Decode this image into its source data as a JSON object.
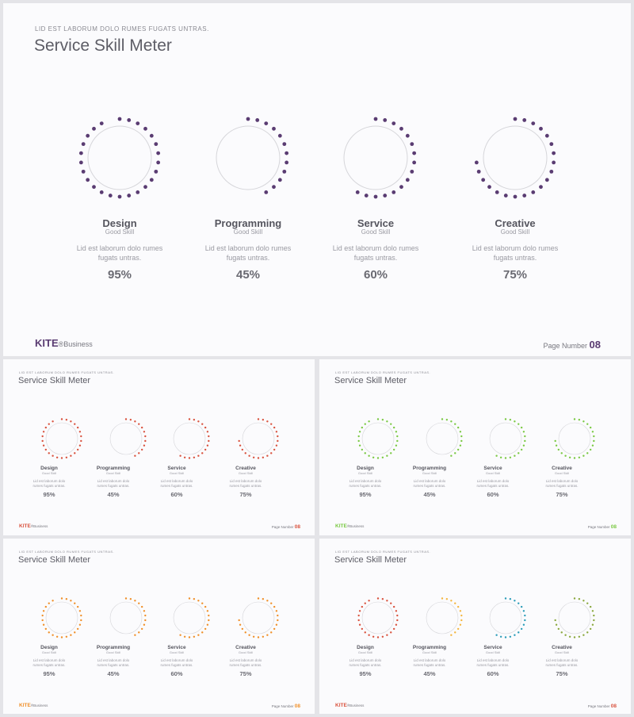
{
  "slide": {
    "supertitle": "LID EST LABORUM  DOLO  RUMES  FUGATS  UNTRAS.",
    "title": "Service Skill Meter",
    "brand_name": "KITE",
    "brand_suffix": "®Business",
    "page_label": "Page  Number",
    "page_number": "08"
  },
  "skills": [
    {
      "name": "Design",
      "sub": "Good Skill",
      "desc": "Lid est laborum dolo rumes fugats untras.",
      "percent_label": "95%",
      "value": 95
    },
    {
      "name": "Programming",
      "sub": "Good Skill",
      "desc": "Lid est laborum dolo rumes fugats untras.",
      "percent_label": "45%",
      "value": 45
    },
    {
      "name": "Service",
      "sub": "Good Skill",
      "desc": "Lid est laborum dolo rumes fugats untras.",
      "percent_label": "60%",
      "value": 60
    },
    {
      "name": "Creative",
      "sub": "Good Skill",
      "desc": "Lid est laborum dolo rumes fugats untras.",
      "percent_label": "75%",
      "value": 75
    }
  ],
  "variants": [
    {
      "id": "main",
      "accent": "#5a3c72",
      "gauge_colors": [
        "#5a3c72",
        "#5a3c72",
        "#5a3c72",
        "#5a3c72"
      ]
    },
    {
      "id": "red",
      "accent": "#d9533f",
      "gauge_colors": [
        "#d9533f",
        "#d9533f",
        "#d9533f",
        "#d9533f"
      ]
    },
    {
      "id": "green",
      "accent": "#7ac943",
      "gauge_colors": [
        "#7ac943",
        "#7ac943",
        "#7ac943",
        "#7ac943"
      ]
    },
    {
      "id": "orange",
      "accent": "#f0902a",
      "gauge_colors": [
        "#f0902a",
        "#f0902a",
        "#f0902a",
        "#f0902a"
      ]
    },
    {
      "id": "multi",
      "accent": "#d9533f",
      "gauge_colors": [
        "#d9533f",
        "#f4b63f",
        "#2a9cb8",
        "#8aa83e"
      ]
    }
  ],
  "ring_color": "#d6d6da"
}
